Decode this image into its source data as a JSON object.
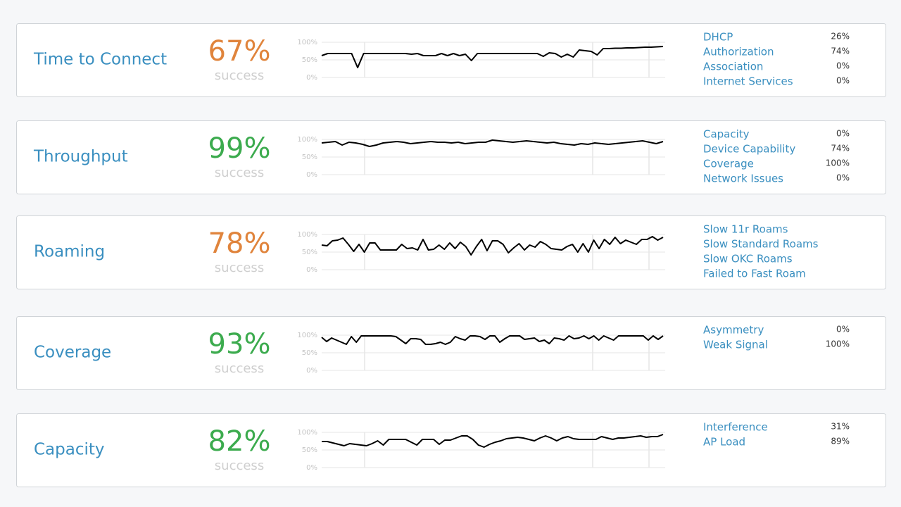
{
  "cards": [
    {
      "title": "Time to Connect",
      "score": "67%",
      "score_color": "#e0843c",
      "caption": "success",
      "chart": {
        "type": "line",
        "ylim": [
          0,
          100
        ],
        "yticks": [
          {
            "value": 100,
            "label": "100%"
          },
          {
            "value": 50,
            "label": "50%"
          },
          {
            "value": 0,
            "label": "0%"
          }
        ],
        "values": [
          62,
          68,
          68,
          68,
          68,
          68,
          28,
          68,
          68,
          68,
          68,
          68,
          68,
          68,
          68,
          66,
          68,
          62,
          62,
          62,
          68,
          62,
          68,
          62,
          66,
          48,
          68,
          68,
          68,
          68,
          68,
          68,
          68,
          68,
          68,
          68,
          68,
          60,
          70,
          68,
          58,
          66,
          58,
          78,
          76,
          74,
          64,
          82,
          82,
          83,
          83,
          84,
          84,
          85,
          86,
          86,
          87,
          88
        ]
      },
      "metrics": [
        {
          "name": "DHCP",
          "value": "26%"
        },
        {
          "name": "Authorization",
          "value": "74%"
        },
        {
          "name": "Association",
          "value": "0%"
        },
        {
          "name": "Internet Services",
          "value": "0%"
        }
      ]
    },
    {
      "title": "Throughput",
      "score": "99%",
      "score_color": "#3cab4e",
      "caption": "success",
      "chart": {
        "type": "line",
        "ylim": [
          0,
          100
        ],
        "yticks": [
          {
            "value": 100,
            "label": "100%"
          },
          {
            "value": 50,
            "label": "50%"
          },
          {
            "value": 0,
            "label": "0%"
          }
        ],
        "values": [
          90,
          92,
          94,
          84,
          92,
          90,
          86,
          80,
          84,
          90,
          92,
          94,
          92,
          88,
          90,
          92,
          94,
          92,
          92,
          90,
          92,
          88,
          90,
          92,
          92,
          98,
          96,
          94,
          92,
          94,
          96,
          94,
          92,
          90,
          92,
          88,
          86,
          84,
          88,
          86,
          90,
          88,
          86,
          88,
          90,
          92,
          94,
          96,
          92,
          88,
          94
        ]
      },
      "metrics": [
        {
          "name": "Capacity",
          "value": "0%"
        },
        {
          "name": "Device Capability",
          "value": "74%"
        },
        {
          "name": "Coverage",
          "value": "100%"
        },
        {
          "name": "Network Issues",
          "value": "0%"
        }
      ]
    },
    {
      "title": "Roaming",
      "score": "78%",
      "score_color": "#e0843c",
      "caption": "success",
      "chart": {
        "type": "line",
        "ylim": [
          0,
          100
        ],
        "yticks": [
          {
            "value": 100,
            "label": "100%"
          },
          {
            "value": 50,
            "label": "50%"
          },
          {
            "value": 0,
            "label": "0%"
          }
        ],
        "values": [
          70,
          68,
          82,
          84,
          90,
          72,
          52,
          72,
          50,
          76,
          76,
          56,
          56,
          56,
          56,
          72,
          60,
          62,
          56,
          86,
          56,
          58,
          70,
          58,
          76,
          60,
          78,
          66,
          42,
          66,
          86,
          54,
          82,
          82,
          72,
          48,
          62,
          74,
          56,
          70,
          64,
          80,
          72,
          60,
          58,
          56,
          66,
          72,
          50,
          74,
          50,
          84,
          60,
          86,
          72,
          92,
          74,
          84,
          78,
          72,
          86,
          86,
          94,
          84,
          92
        ]
      },
      "metrics": [
        {
          "name": "Slow 11r Roams"
        },
        {
          "name": "Slow Standard Roams"
        },
        {
          "name": "Slow OKC Roams"
        },
        {
          "name": "Failed to Fast Roam"
        }
      ]
    },
    {
      "title": "Coverage",
      "score": "93%",
      "score_color": "#3cab4e",
      "caption": "success",
      "chart": {
        "type": "line",
        "ylim": [
          0,
          100
        ],
        "yticks": [
          {
            "value": 100,
            "label": "100%"
          },
          {
            "value": 50,
            "label": "50%"
          },
          {
            "value": 0,
            "label": "0%"
          }
        ],
        "values": [
          94,
          82,
          92,
          86,
          80,
          74,
          96,
          80,
          98,
          98,
          98,
          98,
          98,
          98,
          98,
          96,
          86,
          76,
          90,
          90,
          88,
          74,
          74,
          76,
          80,
          74,
          80,
          96,
          90,
          86,
          98,
          98,
          96,
          88,
          98,
          98,
          80,
          90,
          98,
          98,
          98,
          88,
          90,
          92,
          82,
          86,
          76,
          92,
          90,
          86,
          98,
          90,
          92,
          98,
          90,
          98,
          86,
          98,
          92,
          86,
          98,
          98,
          98,
          98,
          98,
          98,
          86,
          98,
          88,
          98
        ]
      },
      "metrics": [
        {
          "name": "Asymmetry",
          "value": "0%"
        },
        {
          "name": "Weak Signal",
          "value": "100%"
        }
      ]
    },
    {
      "title": "Capacity",
      "score": "82%",
      "score_color": "#3cab4e",
      "caption": "success",
      "chart": {
        "type": "line",
        "ylim": [
          0,
          100
        ],
        "yticks": [
          {
            "value": 100,
            "label": "100%"
          },
          {
            "value": 50,
            "label": "50%"
          },
          {
            "value": 0,
            "label": "0%"
          }
        ],
        "values": [
          74,
          74,
          70,
          66,
          62,
          68,
          66,
          64,
          62,
          68,
          76,
          64,
          80,
          80,
          80,
          80,
          72,
          64,
          80,
          80,
          80,
          66,
          78,
          78,
          84,
          90,
          90,
          80,
          64,
          58,
          66,
          72,
          76,
          82,
          84,
          86,
          84,
          80,
          76,
          84,
          90,
          84,
          76,
          84,
          88,
          82,
          80,
          80,
          80,
          80,
          88,
          84,
          80,
          84,
          84,
          86,
          88,
          90,
          86,
          88,
          88,
          94
        ]
      },
      "metrics": [
        {
          "name": "Interference",
          "value": "31%"
        },
        {
          "name": "AP Load",
          "value": "89%"
        }
      ]
    }
  ]
}
